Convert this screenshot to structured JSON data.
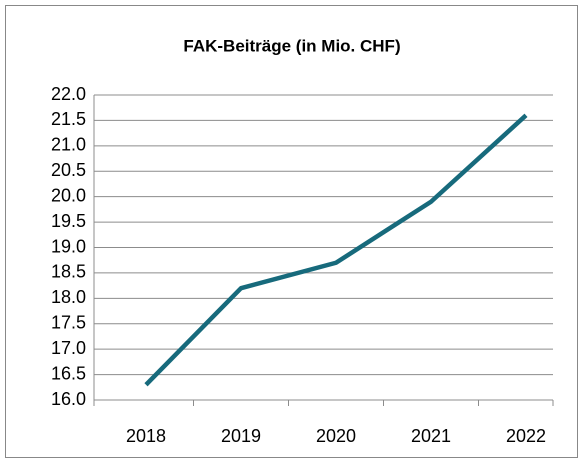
{
  "chart_data": {
    "type": "line",
    "title": "FAK-Beiträge (in Mio. CHF)",
    "categories": [
      "2018",
      "2019",
      "2020",
      "2021",
      "2022"
    ],
    "series": [
      {
        "name": "FAK-Beiträge",
        "color": "#176a7c",
        "values": [
          16.3,
          18.2,
          18.7,
          19.9,
          21.6
        ]
      }
    ],
    "ylim": [
      16,
      22
    ],
    "yticks": [
      {
        "value": 16,
        "label": "16.0"
      },
      16.5,
      {
        "value": 17,
        "label": "17.0"
      },
      17.5,
      {
        "value": 18,
        "label": "18.0"
      },
      18.5,
      {
        "value": 19,
        "label": "19.0"
      },
      19.5,
      {
        "value": 20,
        "label": "20.0"
      },
      20.5,
      {
        "value": 21,
        "label": "21.0"
      },
      21.5,
      {
        "value": 22,
        "label": "22.0"
      }
    ],
    "grid": true
  }
}
